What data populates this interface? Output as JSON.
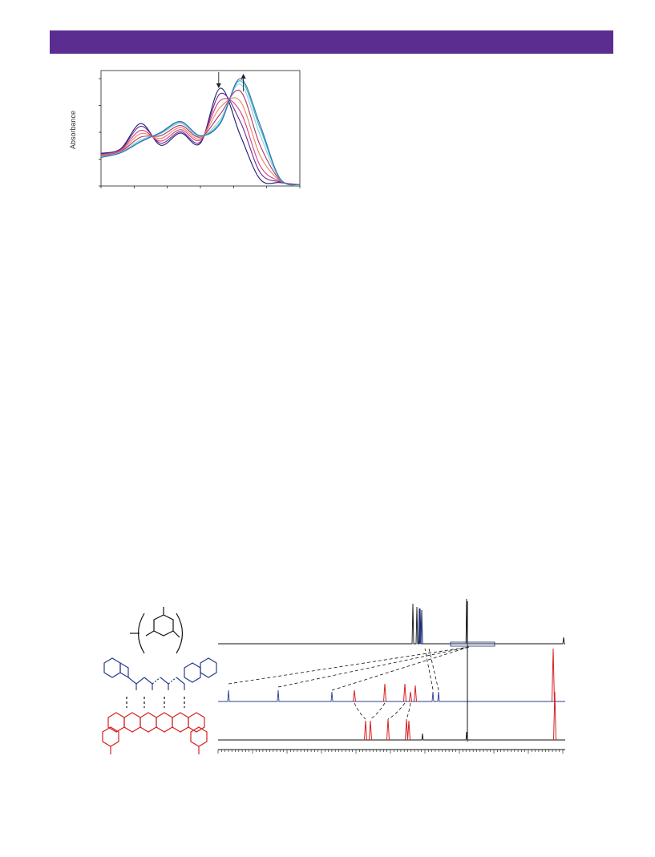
{
  "header": {
    "color": "#5c2d91"
  },
  "chart_data": [
    {
      "type": "line",
      "ylabel": "Absorbance",
      "title": "",
      "xlabel": "",
      "grid": false,
      "x": [
        0,
        10,
        20,
        30,
        40,
        50,
        60,
        70,
        80,
        90,
        100
      ],
      "series": [
        {
          "color": "#1a1a6e",
          "values": [
            0.48,
            0.55,
            0.92,
            0.6,
            0.78,
            0.63,
            1.44,
            0.75,
            0.1,
            0.05,
            0.02
          ]
        },
        {
          "color": "#6a2c91",
          "values": [
            0.47,
            0.54,
            0.88,
            0.63,
            0.8,
            0.65,
            1.36,
            0.95,
            0.2,
            0.06,
            0.02
          ]
        },
        {
          "color": "#d83a8a",
          "values": [
            0.46,
            0.53,
            0.82,
            0.66,
            0.83,
            0.68,
            1.26,
            1.1,
            0.3,
            0.07,
            0.02
          ]
        },
        {
          "color": "#e8885a",
          "values": [
            0.45,
            0.52,
            0.77,
            0.7,
            0.86,
            0.7,
            1.16,
            1.25,
            0.45,
            0.08,
            0.02
          ]
        },
        {
          "color": "#b0306a",
          "values": [
            0.44,
            0.51,
            0.72,
            0.74,
            0.89,
            0.72,
            1.06,
            1.4,
            0.6,
            0.09,
            0.02
          ]
        },
        {
          "color": "#8cd0d8",
          "values": [
            0.43,
            0.5,
            0.68,
            0.77,
            0.92,
            0.73,
            0.98,
            1.5,
            0.75,
            0.1,
            0.02
          ]
        },
        {
          "color": "#3ab0c8",
          "values": [
            0.42,
            0.49,
            0.66,
            0.78,
            0.94,
            0.74,
            0.94,
            1.55,
            0.85,
            0.11,
            0.02
          ]
        },
        {
          "color": "#2c6fb0",
          "values": [
            0.42,
            0.49,
            0.65,
            0.79,
            0.95,
            0.74,
            0.92,
            1.58,
            0.9,
            0.11,
            0.02
          ]
        }
      ],
      "arrows": [
        "down",
        "up"
      ]
    },
    {
      "type": "nmr-stack",
      "traces": [
        {
          "color": "#111111",
          "label": "top"
        },
        {
          "color": "#2a3d8f",
          "label": "middle"
        },
        {
          "color": "#d62020",
          "label": "bottom"
        }
      ]
    }
  ],
  "colors": {
    "blue": "#2a3d8f",
    "red": "#d62020",
    "black": "#111111"
  }
}
